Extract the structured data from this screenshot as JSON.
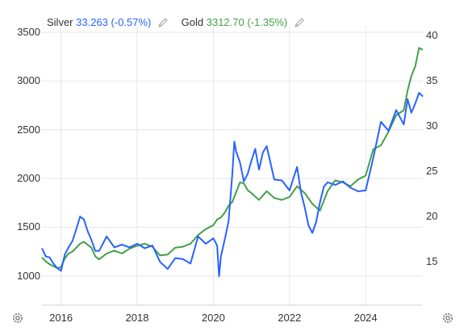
{
  "legend": {
    "silver_name": "Silver",
    "silver_value": "33.263",
    "silver_change": "(-0.57%)",
    "gold_name": "Gold",
    "gold_value": "3312.70",
    "gold_change": "(-1.35%)"
  },
  "icons": {
    "edit": "pencil-icon",
    "settings": "gear-icon"
  },
  "colors": {
    "silver": "#2962ff",
    "gold": "#43a047",
    "grid": "#e6e6e6",
    "text": "#333333"
  },
  "chart_data": {
    "type": "line",
    "title": "",
    "xlabel": "",
    "x_ticks": [
      "2016",
      "2018",
      "2020",
      "2022",
      "2024"
    ],
    "x_range": [
      2015.5,
      2025.5
    ],
    "y_left": {
      "ylabel": "",
      "ticks": [
        "1000",
        "1500",
        "2000",
        "2500",
        "3000",
        "3500"
      ],
      "ylim": [
        700,
        3500
      ]
    },
    "y_right": {
      "ylabel": "",
      "ticks": [
        "15",
        "20",
        "25",
        "30",
        "35",
        "40"
      ],
      "ylim": [
        10.2,
        40.4
      ]
    },
    "grid": true,
    "legend_position": "top-left",
    "series": [
      {
        "name": "Gold",
        "axis": "left",
        "x": [
          2015.5,
          2015.6,
          2015.7,
          2015.8,
          2015.9,
          2016.0,
          2016.1,
          2016.2,
          2016.3,
          2016.4,
          2016.5,
          2016.6,
          2016.7,
          2016.8,
          2016.9,
          2017.0,
          2017.2,
          2017.4,
          2017.6,
          2017.8,
          2018.0,
          2018.2,
          2018.4,
          2018.6,
          2018.8,
          2019.0,
          2019.2,
          2019.4,
          2019.6,
          2019.8,
          2020.0,
          2020.1,
          2020.2,
          2020.3,
          2020.4,
          2020.5,
          2020.6,
          2020.7,
          2020.8,
          2020.9,
          2021.0,
          2021.2,
          2021.4,
          2021.6,
          2021.8,
          2022.0,
          2022.2,
          2022.4,
          2022.6,
          2022.8,
          2023.0,
          2023.2,
          2023.4,
          2023.6,
          2023.8,
          2024.0,
          2024.2,
          2024.4,
          2024.6,
          2024.8,
          2025.0,
          2025.1,
          2025.2,
          2025.3,
          2025.4,
          2025.5
        ],
        "y": [
          1190,
          1150,
          1120,
          1100,
          1080,
          1090,
          1180,
          1230,
          1250,
          1290,
          1330,
          1350,
          1320,
          1290,
          1200,
          1170,
          1230,
          1260,
          1230,
          1280,
          1310,
          1330,
          1300,
          1210,
          1220,
          1290,
          1300,
          1330,
          1420,
          1480,
          1520,
          1580,
          1600,
          1650,
          1720,
          1760,
          1860,
          1960,
          1950,
          1880,
          1850,
          1780,
          1870,
          1800,
          1780,
          1810,
          1920,
          1850,
          1740,
          1670,
          1870,
          1980,
          1960,
          1920,
          1990,
          2030,
          2300,
          2340,
          2480,
          2650,
          2700,
          2900,
          3050,
          3150,
          3340,
          3320
        ]
      },
      {
        "name": "Silver",
        "axis": "right",
        "x": [
          2015.5,
          2015.6,
          2015.7,
          2015.8,
          2015.9,
          2016.0,
          2016.1,
          2016.2,
          2016.3,
          2016.4,
          2016.5,
          2016.6,
          2016.7,
          2016.8,
          2016.9,
          2017.0,
          2017.2,
          2017.4,
          2017.6,
          2017.8,
          2018.0,
          2018.2,
          2018.4,
          2018.6,
          2018.8,
          2019.0,
          2019.2,
          2019.4,
          2019.6,
          2019.8,
          2020.0,
          2020.1,
          2020.15,
          2020.2,
          2020.3,
          2020.4,
          2020.5,
          2020.55,
          2020.6,
          2020.7,
          2020.8,
          2020.9,
          2021.0,
          2021.1,
          2021.2,
          2021.3,
          2021.4,
          2021.6,
          2021.8,
          2022.0,
          2022.2,
          2022.3,
          2022.4,
          2022.5,
          2022.6,
          2022.7,
          2022.8,
          2022.9,
          2023.0,
          2023.2,
          2023.4,
          2023.6,
          2023.8,
          2024.0,
          2024.2,
          2024.4,
          2024.6,
          2024.8,
          2025.0,
          2025.1,
          2025.2,
          2025.3,
          2025.4,
          2025.5
        ],
        "y": [
          16.5,
          15.6,
          15.5,
          14.8,
          14.3,
          14.0,
          15.8,
          16.6,
          17.3,
          18.6,
          20.0,
          19.7,
          18.4,
          17.4,
          16.2,
          16.2,
          17.8,
          16.6,
          16.9,
          16.6,
          17.0,
          16.5,
          16.8,
          15.0,
          14.2,
          15.4,
          15.3,
          14.8,
          17.8,
          17.0,
          17.6,
          16.8,
          13.4,
          15.6,
          17.5,
          19.5,
          24.8,
          28.3,
          27.2,
          26.0,
          23.9,
          24.7,
          26.2,
          27.5,
          25.2,
          27.1,
          27.8,
          24.1,
          24.0,
          22.9,
          25.5,
          22.7,
          21.0,
          19.0,
          18.2,
          19.4,
          21.6,
          23.3,
          23.8,
          23.5,
          23.9,
          23.2,
          22.8,
          22.9,
          26.5,
          30.5,
          29.5,
          31.8,
          30.2,
          33.0,
          31.5,
          32.5,
          33.7,
          33.3
        ]
      }
    ]
  }
}
